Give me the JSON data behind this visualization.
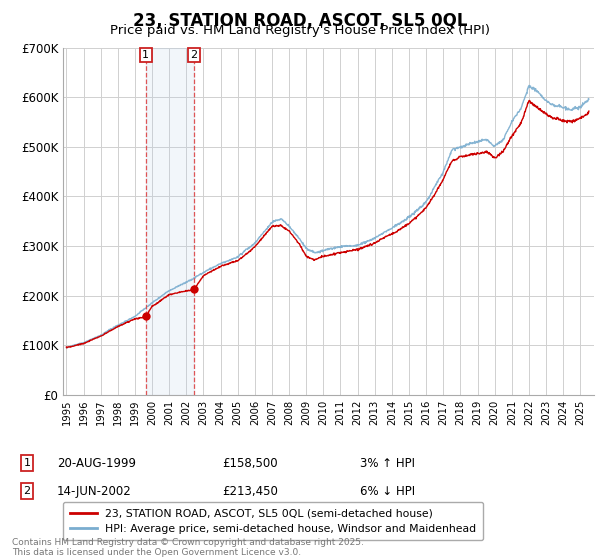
{
  "title": "23, STATION ROAD, ASCOT, SL5 0QL",
  "subtitle": "Price paid vs. HM Land Registry's House Price Index (HPI)",
  "ylim": [
    0,
    700000
  ],
  "yticks": [
    0,
    100000,
    200000,
    300000,
    400000,
    500000,
    600000,
    700000
  ],
  "ytick_labels": [
    "£0",
    "£100K",
    "£200K",
    "£300K",
    "£400K",
    "£500K",
    "£600K",
    "£700K"
  ],
  "xlim_start": 1994.8,
  "xlim_end": 2025.8,
  "red_line_color": "#cc0000",
  "blue_line_color": "#7aadcf",
  "sale1_x": 1999.63,
  "sale1_y": 158500,
  "sale2_x": 2002.45,
  "sale2_y": 213450,
  "legend_line1": "23, STATION ROAD, ASCOT, SL5 0QL (semi-detached house)",
  "legend_line2": "HPI: Average price, semi-detached house, Windsor and Maidenhead",
  "sale1_date": "20-AUG-1999",
  "sale1_price": "£158,500",
  "sale1_hpi": "3% ↑ HPI",
  "sale2_date": "14-JUN-2002",
  "sale2_price": "£213,450",
  "sale2_hpi": "6% ↓ HPI",
  "footnote": "Contains HM Land Registry data © Crown copyright and database right 2025.\nThis data is licensed under the Open Government Licence v3.0.",
  "bg_color": "#ffffff",
  "grid_color": "#d0d0d0"
}
